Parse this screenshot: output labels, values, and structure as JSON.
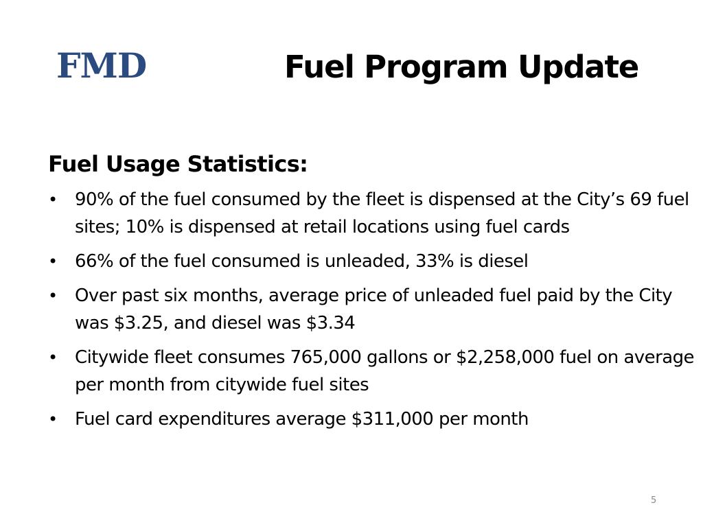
{
  "header": {
    "logo": "FMD",
    "title": "Fuel Program Update"
  },
  "section": {
    "heading": "Fuel Usage Statistics:",
    "bullets": [
      "90% of the fuel consumed by the fleet is dispensed at the City’s 69 fuel sites; 10% is dispensed at retail locations using fuel cards",
      "66% of the fuel consumed is unleaded, 33% is diesel",
      "Over past six months, average price of unleaded fuel paid by the City was $3.25, and diesel was $3.34",
      "Citywide fleet consumes 765,000 gallons or $2,258,000 fuel on average per month from citywide fuel sites",
      "Fuel card expenditures average $311,000 per month"
    ]
  },
  "footer": {
    "page_number": "5"
  },
  "colors": {
    "logo": "#2b4a80",
    "text": "#000000",
    "page_number": "#888888"
  }
}
